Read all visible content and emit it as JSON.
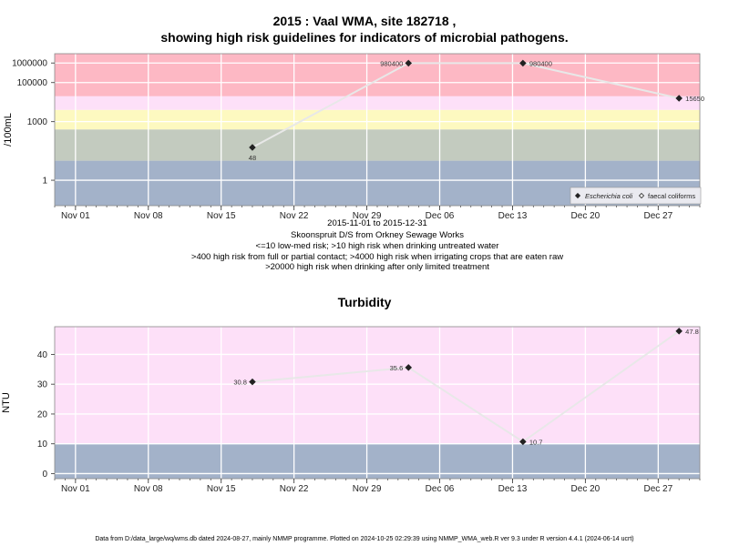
{
  "chart_data": [
    {
      "type": "line",
      "title": "2015 : Vaal WMA, site 182718 ,",
      "subtitle": "showing high risk guidelines for indicators of microbial pathogens.",
      "xlabel": "",
      "ylabel": "/100mL",
      "y_scale": "log",
      "y_ticks": [
        "1",
        "1000",
        "100000",
        "1000000"
      ],
      "x_ticks": [
        "Nov 01",
        "Nov 08",
        "Nov 15",
        "Nov 22",
        "Nov 29",
        "Dec 06",
        "Dec 13",
        "Dec 20",
        "Dec 27"
      ],
      "x_range": [
        "2015-10-30",
        "2015-12-31"
      ],
      "y_range": [
        0.05,
        3000000
      ],
      "grid": true,
      "legend_position": "bottom-right",
      "bands": [
        {
          "from": 0.05,
          "to": 10,
          "color": "#a3b2c9"
        },
        {
          "from": 10,
          "to": 400,
          "color": "#c3cbbf"
        },
        {
          "from": 400,
          "to": 4000,
          "color": "#fdf9c0"
        },
        {
          "from": 4000,
          "to": 20000,
          "color": "#fde0f8"
        },
        {
          "from": 20000,
          "to": 3000000,
          "color": "#fdb8c4"
        }
      ],
      "series": [
        {
          "name": "Escherichia coli",
          "marker": "filled-diamond",
          "x": [
            "2015-11-18",
            "2015-12-03",
            "2015-12-14",
            "2015-12-29"
          ],
          "y": [
            48,
            980400,
            980400,
            15650
          ],
          "labels": [
            "48",
            "980400",
            "980400",
            "15650"
          ]
        }
      ],
      "legend": [
        {
          "label": "Escherichia coli",
          "marker": "filled-diamond"
        },
        {
          "label": "faecal coliforms",
          "marker": "open-diamond"
        }
      ],
      "caption": [
        "2015-11-01 to 2015-12-31",
        "Skoonspruit D/S from Orkney Sewage Works",
        "<=10 low-med risk; >10 high risk when drinking untreated water",
        ">400 high risk from full or partial contact; >4000 high risk when irrigating crops that are eaten raw",
        ">20000 high risk when drinking after only limited treatment"
      ]
    },
    {
      "type": "line",
      "title": "Turbidity",
      "xlabel": "",
      "ylabel": "NTU",
      "y_ticks": [
        "0",
        "10",
        "20",
        "30",
        "40"
      ],
      "x_ticks": [
        "Nov 01",
        "Nov 08",
        "Nov 15",
        "Nov 22",
        "Nov 29",
        "Dec 06",
        "Dec 13",
        "Dec 20",
        "Dec 27"
      ],
      "x_range": [
        "2015-10-30",
        "2015-12-31"
      ],
      "y_range": [
        -1.7,
        49.3
      ],
      "grid": true,
      "bands": [
        {
          "from": -1.7,
          "to": 10,
          "color": "#a3b2c9"
        },
        {
          "from": 10,
          "to": 49.3,
          "color": "#fde0f8"
        }
      ],
      "series": [
        {
          "name": "",
          "marker": "filled-diamond",
          "x": [
            "2015-11-18",
            "2015-12-03",
            "2015-12-14",
            "2015-12-29"
          ],
          "y": [
            30.8,
            35.6,
            10.7,
            47.8
          ],
          "labels": [
            "30.8",
            "35.6",
            "10.7",
            "47.8"
          ]
        }
      ]
    }
  ],
  "footer": "Data from D:/data_large/wq/wms.db dated 2024-08-27, mainly NMMP programme. Plotted on 2024-10-25 02:29:39 using NMMP_WMA_web.R ver 9.3 under R version 4.4.1 (2024-06-14 ucrt)"
}
